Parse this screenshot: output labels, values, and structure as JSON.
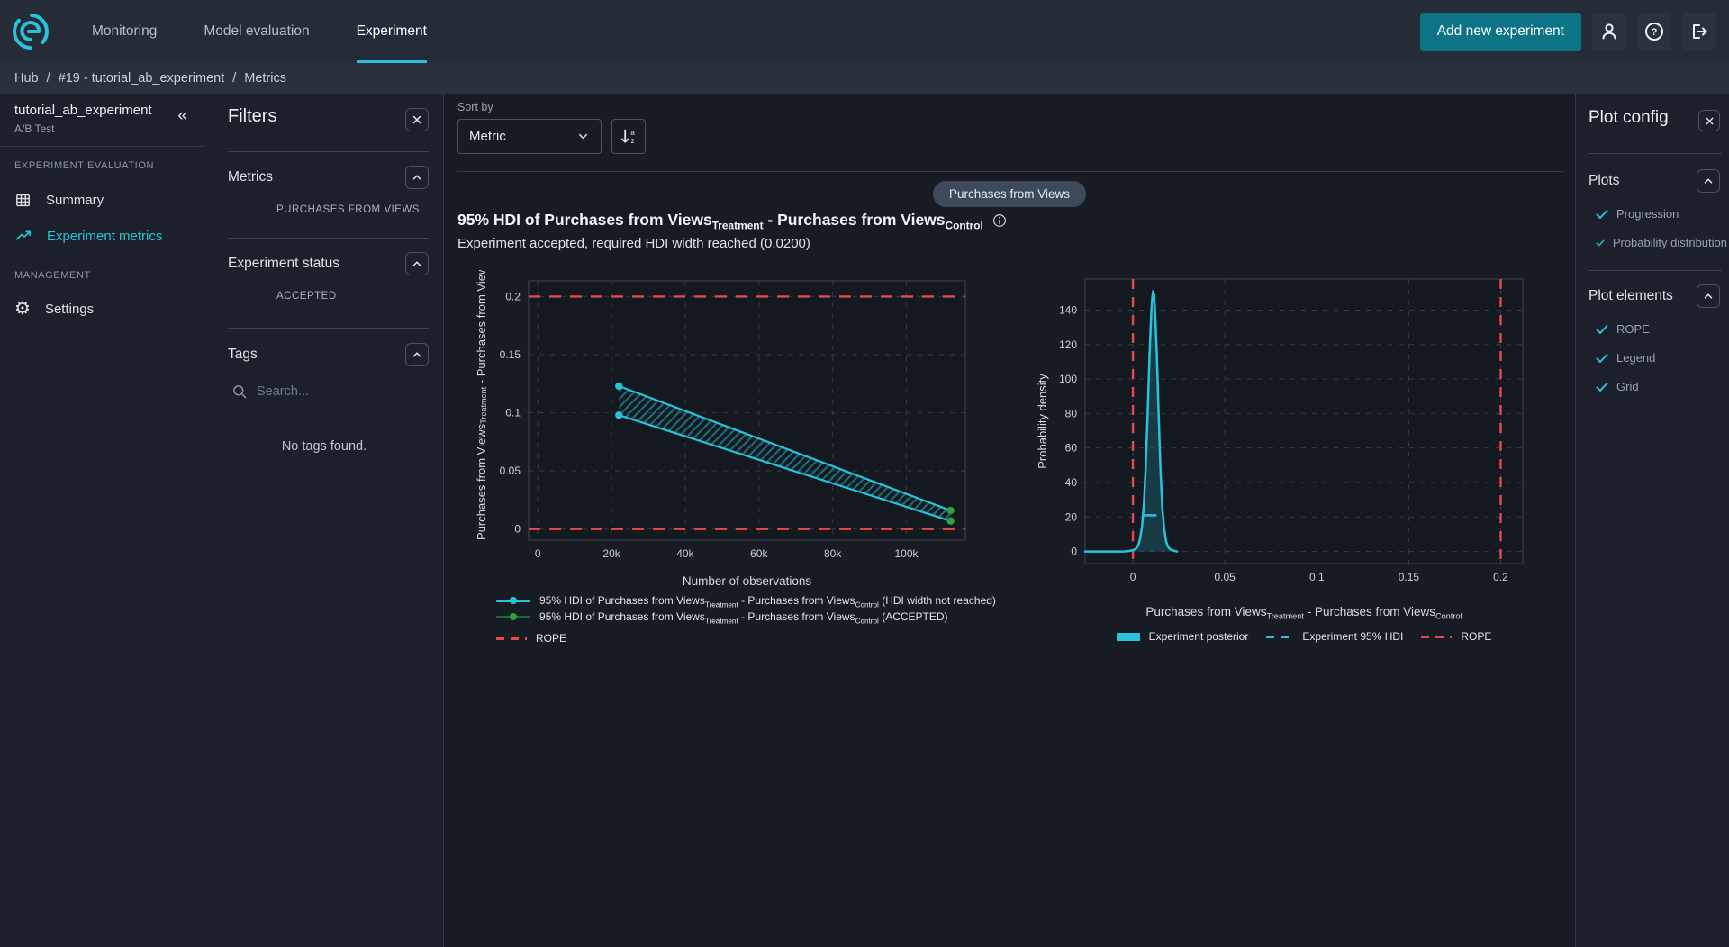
{
  "nav": {
    "tabs": [
      {
        "label": "Monitoring"
      },
      {
        "label": "Model evaluation"
      },
      {
        "label": "Experiment"
      }
    ],
    "active_tab": "Experiment",
    "add_button_label": "Add new experiment"
  },
  "breadcrumb": {
    "items": [
      "Hub",
      "#19 - tutorial_ab_experiment",
      "Metrics"
    ],
    "separator": "/"
  },
  "sidebar": {
    "experiment_name": "tutorial_ab_experiment",
    "experiment_type": "A/B Test",
    "collapse_icon": "«",
    "settings_glyph": "⚙",
    "sections": [
      {
        "header": "EXPERIMENT EVALUATION",
        "items": [
          {
            "label": "Summary"
          },
          {
            "label": "Experiment metrics"
          }
        ]
      },
      {
        "header": "MANAGEMENT",
        "items": [
          {
            "label": "Settings"
          }
        ]
      }
    ]
  },
  "filters": {
    "title": "Filters",
    "groups": [
      {
        "label": "Metrics",
        "items": [
          "PURCHASES FROM VIEWS"
        ]
      },
      {
        "label": "Experiment status",
        "items": [
          "ACCEPTED"
        ]
      },
      {
        "label": "Tags",
        "search_placeholder": "Search...",
        "empty_text": "No tags found."
      }
    ]
  },
  "toolbar": {
    "sort_by_label": "Sort by",
    "sort_value": "Metric"
  },
  "metric_chip_label": "Purchases from Views",
  "metric_header": {
    "title": "95% HDI of Purchases from Views_{Treatment} - Purchases from Views_{Control}",
    "subtitle": "Experiment accepted, required HDI width reached (0.0200)"
  },
  "plot_config": {
    "title": "Plot config",
    "sections": [
      {
        "label": "Plots",
        "items": [
          "Progression",
          "Probability distribution"
        ]
      },
      {
        "label": "Plot elements",
        "items": [
          "ROPE",
          "Legend",
          "Grid"
        ]
      }
    ]
  },
  "colors": {
    "accent": "#29c2da",
    "green": "#2ea043",
    "green_line": "#1d6b36",
    "red": "#e5484d",
    "teal_button": "#0d7488",
    "plot_bg": "#14181f",
    "grid": "#333b47",
    "plot_border": "#3d4553",
    "hatch": "#1d6a7a",
    "density_fill": "rgba(41,194,218,0.20)"
  },
  "chart_data": [
    {
      "type": "line",
      "id": "hdi-progression",
      "xlabel": "Number of observations",
      "ylabel": "Purchases from Views_{Treatment} - Purchases from Views_{Control}",
      "xlim": [
        -2500,
        116000
      ],
      "ylim": [
        -0.0095,
        0.2135
      ],
      "xticks": [
        0,
        20000,
        40000,
        60000,
        80000,
        100000
      ],
      "xtick_labels": [
        "0",
        "20k",
        "40k",
        "60k",
        "80k",
        "100k"
      ],
      "yticks": [
        0,
        0.05,
        0.1,
        0.15,
        0.2
      ],
      "ytick_labels": [
        "0",
        "0.05",
        "0.1",
        "0.15",
        "0.2"
      ],
      "grid": true,
      "rope": [
        0,
        0.2
      ],
      "series": [
        {
          "name": "hdi_upper",
          "x": [
            22000,
            112000
          ],
          "y": [
            0.123,
            0.016
          ]
        },
        {
          "name": "hdi_lower",
          "x": [
            22000,
            112000
          ],
          "y": [
            0.098,
            0.007
          ]
        }
      ],
      "legend": [
        {
          "marker": "hdi-cyan",
          "label": "95% HDI of Purchases from Views_{Treatment} - Purchases from Views_{Control} (HDI width not reached)"
        },
        {
          "marker": "hdi-green",
          "label": "95% HDI of Purchases from Views_{Treatment} - Purchases from Views_{Control} (ACCEPTED)"
        },
        {
          "marker": "rope",
          "label": "ROPE"
        }
      ]
    },
    {
      "type": "area",
      "id": "posterior-distribution",
      "xlabel": "Purchases from Views_{Treatment} - Purchases from Views_{Control}",
      "ylabel": "Probability density",
      "xlim": [
        -0.026,
        0.212
      ],
      "ylim": [
        -7,
        158
      ],
      "xticks": [
        0,
        0.05,
        0.1,
        0.15,
        0.2
      ],
      "xtick_labels": [
        "0",
        "0.05",
        "0.1",
        "0.15",
        "0.2"
      ],
      "yticks": [
        0,
        20,
        40,
        60,
        80,
        100,
        120,
        140
      ],
      "ytick_labels": [
        "0",
        "20",
        "40",
        "60",
        "80",
        "100",
        "120",
        "140"
      ],
      "grid": true,
      "rope": [
        0,
        0.2
      ],
      "hdi": {
        "y": 21,
        "x1": 0.0055,
        "x2": 0.0165
      },
      "curve": {
        "x": [
          -0.026,
          -0.02,
          -0.015,
          -0.01,
          -0.005,
          -0.002,
          0,
          0.001,
          0.002,
          0.003,
          0.004,
          0.005,
          0.006,
          0.007,
          0.008,
          0.009,
          0.01,
          0.0105,
          0.011,
          0.0115,
          0.012,
          0.013,
          0.014,
          0.015,
          0.016,
          0.017,
          0.018,
          0.019,
          0.02,
          0.022,
          0.024
        ],
        "y": [
          0,
          0,
          0,
          0,
          0,
          0.3,
          0.8,
          1.2,
          2,
          4,
          8,
          15,
          28,
          50,
          80,
          113,
          139,
          147,
          151,
          149,
          140,
          114,
          79,
          47,
          25,
          13,
          6,
          3,
          1.5,
          0.5,
          0
        ]
      },
      "legend": [
        {
          "marker": "posterior",
          "label": "Experiment posterior"
        },
        {
          "marker": "hdi-dash",
          "label": "Experiment 95% HDI"
        },
        {
          "marker": "rope",
          "label": "ROPE"
        }
      ]
    }
  ]
}
